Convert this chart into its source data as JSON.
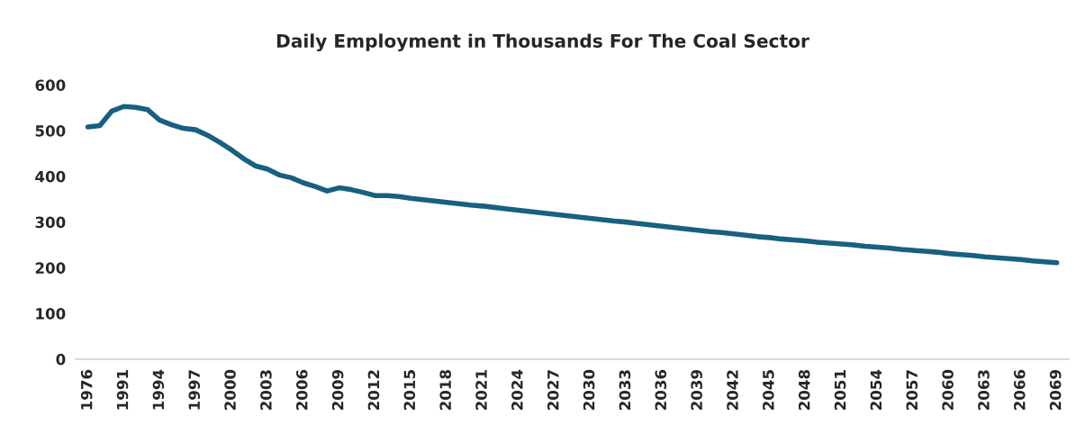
{
  "chart_data": {
    "type": "line",
    "title": "Daily Employment in Thousands For The Coal Sector",
    "categories": [
      "1976",
      null,
      null,
      "1991",
      null,
      null,
      "1994",
      null,
      null,
      "1997",
      null,
      null,
      "2000",
      null,
      null,
      "2003",
      null,
      null,
      "2006",
      null,
      null,
      "2009",
      null,
      null,
      "2012",
      null,
      null,
      "2015",
      null,
      null,
      "2018",
      null,
      null,
      "2021",
      null,
      null,
      "2024",
      null,
      null,
      "2027",
      null,
      null,
      "2030",
      null,
      null,
      "2033",
      null,
      null,
      "2036",
      null,
      null,
      "2039",
      null,
      null,
      "2042",
      null,
      null,
      "2045",
      null,
      null,
      "2048",
      null,
      null,
      "2051",
      null,
      null,
      "2054",
      null,
      null,
      "2057",
      null,
      null,
      "2060",
      null,
      null,
      "2063",
      null,
      null,
      "2066",
      null,
      null,
      "2069"
    ],
    "series": [
      {
        "color": "#17607f",
        "values": [
          508,
          511,
          543,
          553,
          551,
          546,
          523,
          513,
          505,
          502,
          490,
          475,
          458,
          439,
          423,
          416,
          403,
          397,
          386,
          378,
          368,
          375,
          371,
          365,
          358,
          358,
          356,
          352,
          349,
          346,
          343,
          340,
          337,
          335,
          332,
          329,
          326,
          323,
          320,
          317,
          314,
          311,
          308,
          305,
          302,
          300,
          297,
          294,
          291,
          288,
          285,
          282,
          279,
          277,
          274,
          271,
          268,
          266,
          263,
          261,
          259,
          256,
          254,
          252,
          250,
          247,
          245,
          243,
          240,
          238,
          236,
          234,
          231,
          229,
          227,
          224,
          222,
          220,
          218,
          215,
          213,
          211
        ]
      }
    ],
    "ylim": [
      0,
      600
    ],
    "yticks": [
      0,
      100,
      200,
      300,
      400,
      500,
      600
    ],
    "grid": false,
    "legend": false
  }
}
